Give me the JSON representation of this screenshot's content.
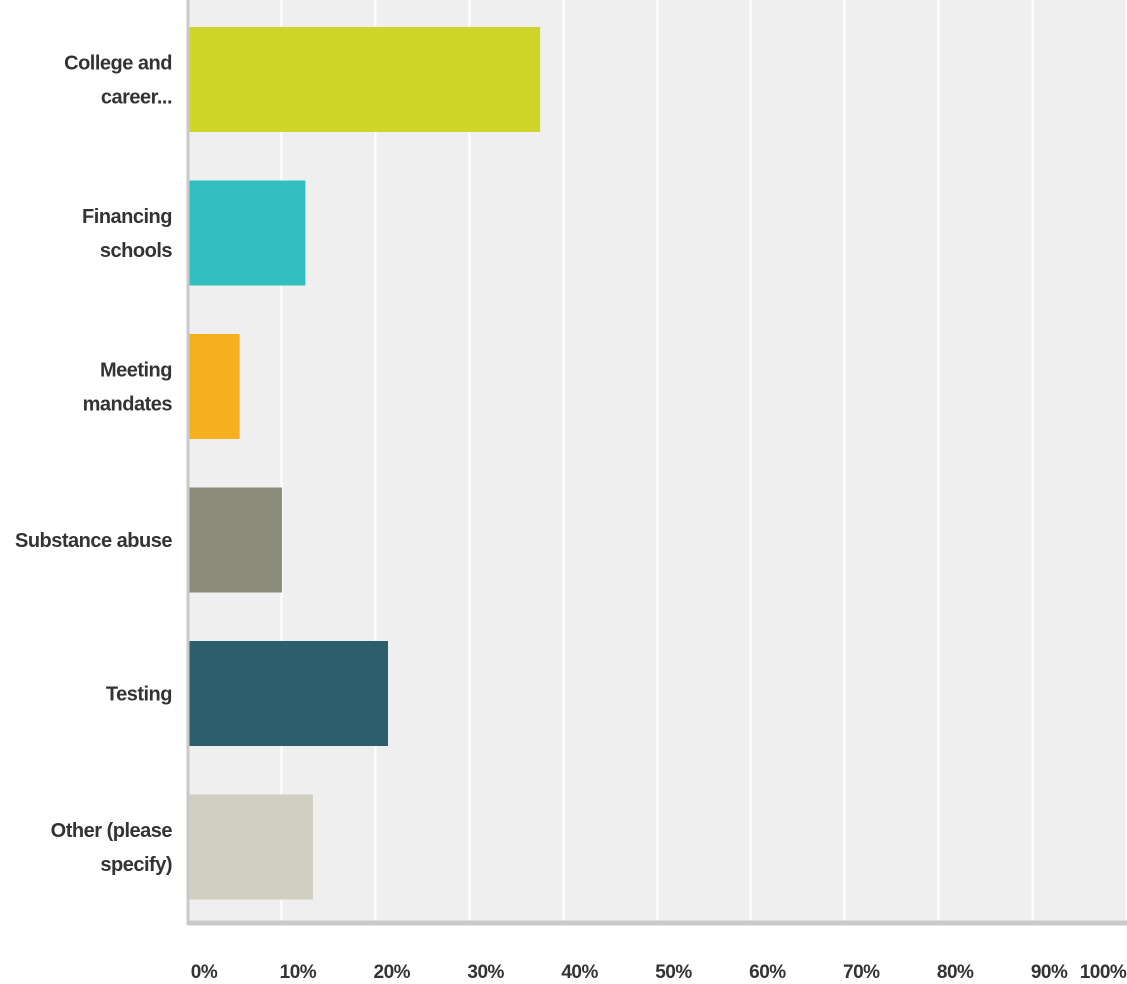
{
  "chart_data": {
    "type": "bar",
    "orientation": "horizontal",
    "title": "",
    "xlabel": "",
    "ylabel": "",
    "categories": [
      [
        "College and",
        "career..."
      ],
      [
        "Financing",
        "schools"
      ],
      [
        "Meeting",
        "mandates"
      ],
      [
        "Substance abuse"
      ],
      [
        "Testing"
      ],
      [
        "Other (please",
        "specify)"
      ]
    ],
    "values": [
      37.5,
      12.5,
      5.5,
      10,
      21.3,
      13.3
    ],
    "xlim": [
      0,
      100
    ],
    "x_ticks": [
      0,
      10,
      20,
      30,
      40,
      50,
      60,
      70,
      80,
      90,
      100
    ],
    "x_tick_labels": [
      "0%",
      "10%",
      "20%",
      "30%",
      "40%",
      "50%",
      "60%",
      "70%",
      "80%",
      "90%",
      "100%"
    ],
    "colors": [
      "#cfd629",
      "#33bfbf",
      "#f6af1f",
      "#8a8b78",
      "#2c5e6b",
      "#d0cfc1"
    ],
    "plot_background": "#efefef",
    "gridlines": true,
    "grid_color": "#ffffff",
    "axis_color": "#c9c9c9",
    "legend": "none"
  }
}
